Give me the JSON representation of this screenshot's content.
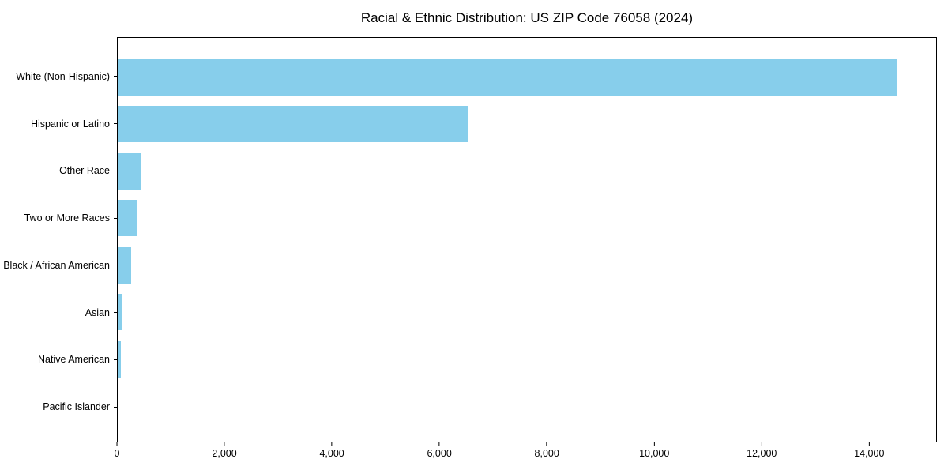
{
  "page": {
    "background": "#ffffff"
  },
  "chart_data": {
    "type": "bar",
    "orientation": "horizontal",
    "title": "Racial & Ethnic Distribution: US ZIP Code 76058 (2024)",
    "categories": [
      "White (Non-Hispanic)",
      "Hispanic or Latino",
      "Other Race",
      "Two or More Races",
      "Black / African American",
      "Asian",
      "Native American",
      "Pacific Islander"
    ],
    "values": [
      14530,
      6540,
      445,
      355,
      245,
      80,
      60,
      15
    ],
    "xlabel": "",
    "ylabel": "",
    "xlim": [
      0,
      15260
    ],
    "xticks": [
      0,
      2000,
      4000,
      6000,
      8000,
      10000,
      12000,
      14000
    ],
    "xtick_labels": [
      "0",
      "2,000",
      "4,000",
      "6,000",
      "8,000",
      "10,000",
      "12,000",
      "14,000"
    ],
    "bar_color": "#87CEEB",
    "axis_color": "#000000",
    "grid": false,
    "legend": null
  }
}
